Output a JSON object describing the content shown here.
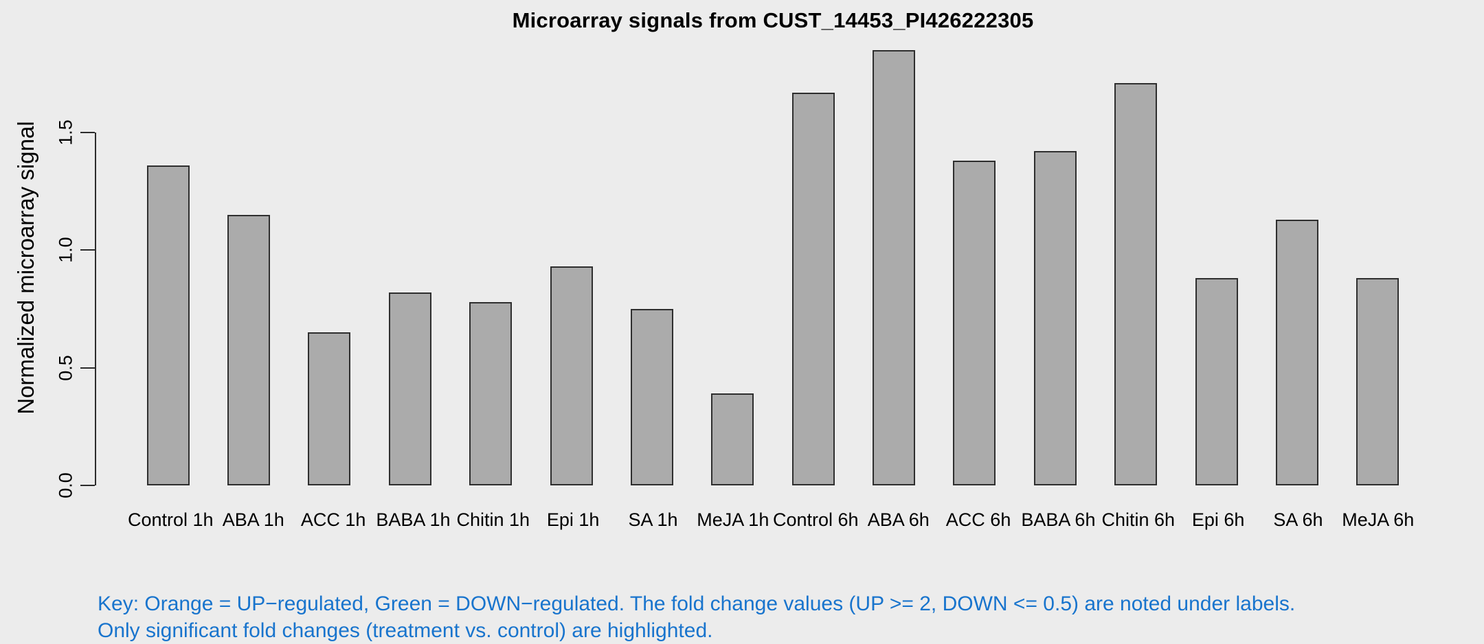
{
  "chart_data": {
    "type": "bar",
    "title": "Microarray signals from CUST_14453_PI426222305",
    "ylabel": "Normalized microarray signal",
    "xlabel": "",
    "categories": [
      "Control 1h",
      "ABA 1h",
      "ACC 1h",
      "BABA 1h",
      "Chitin 1h",
      "Epi 1h",
      "SA 1h",
      "MeJA 1h",
      "Control 6h",
      "ABA 6h",
      "ACC 6h",
      "BABA 6h",
      "Chitin 6h",
      "Epi 6h",
      "SA 6h",
      "MeJA 6h"
    ],
    "values": [
      1.36,
      1.15,
      0.65,
      0.82,
      0.78,
      0.93,
      0.75,
      0.39,
      1.67,
      1.85,
      1.38,
      1.42,
      1.71,
      0.88,
      1.13,
      0.88
    ],
    "ylim": [
      0,
      1.9
    ],
    "yticks": [
      0,
      0.5,
      1,
      1.5
    ],
    "ytick_labels": [
      "0.0",
      "0.5",
      "1.0",
      "1.5"
    ],
    "grid": false,
    "legend": "none",
    "bar_fill": "#ABABAB",
    "bar_border": "#2E2E2E",
    "background": "#ECECEC",
    "annotations": [
      "Key: Orange = UP−regulated, Green = DOWN−regulated. The fold change values (UP >= 2, DOWN <= 0.5) are noted under labels.",
      "Only significant fold changes (treatment vs. control) are highlighted."
    ],
    "annotation_color": "#1874CD"
  }
}
